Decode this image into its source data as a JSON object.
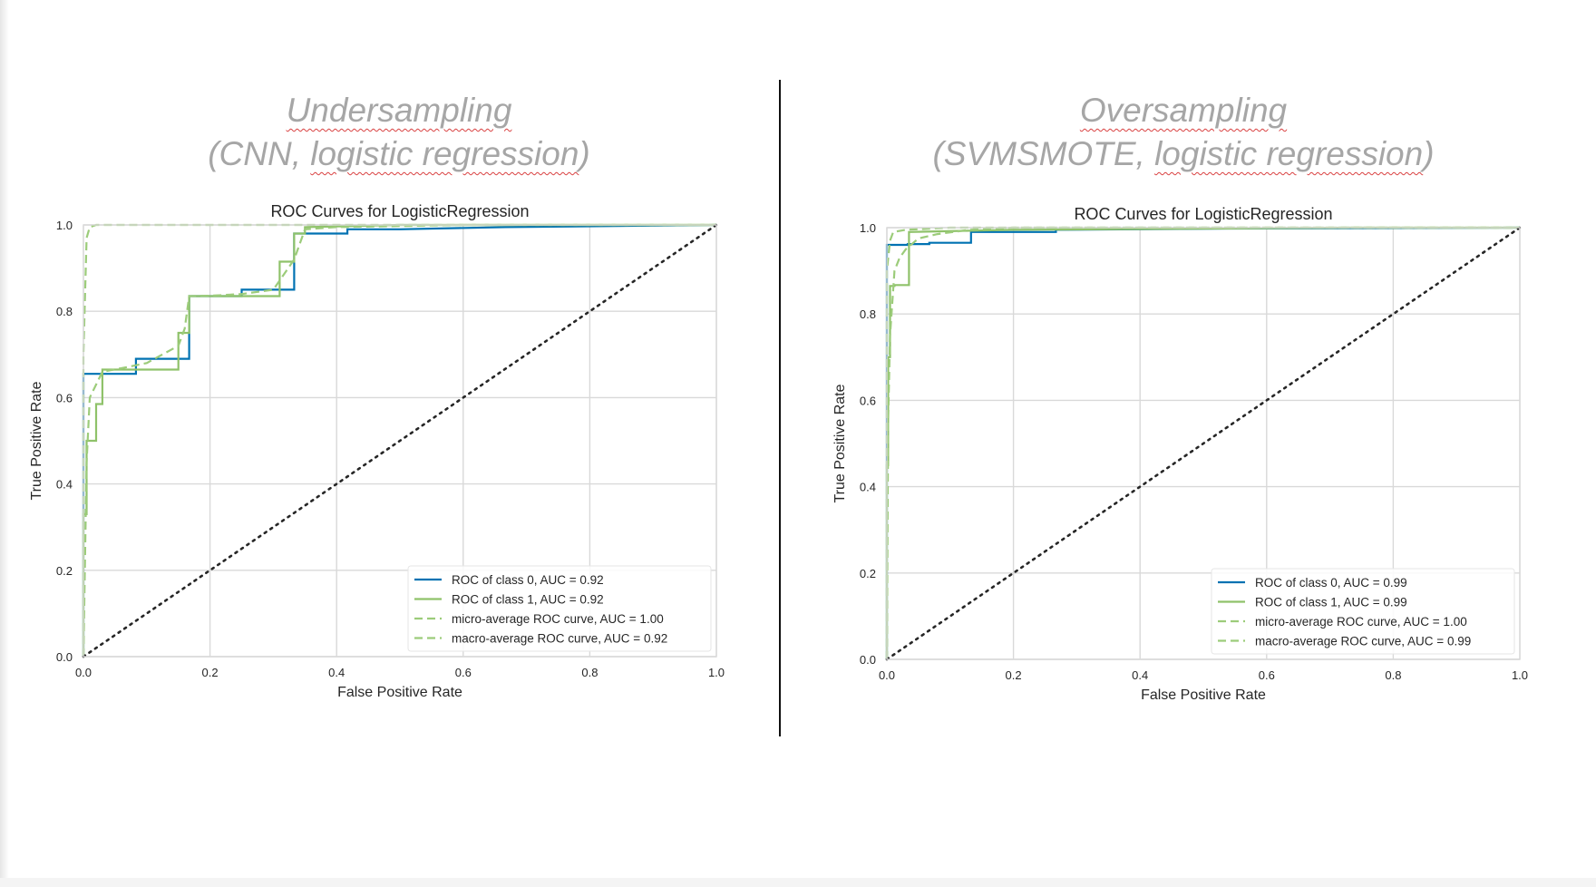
{
  "panels": [
    {
      "heading_main": "Undersampling",
      "heading_open": "(CNN, ",
      "heading_emph": "logistic regression",
      "heading_close": ")"
    },
    {
      "heading_main": "Oversampling",
      "heading_open": "(SVMSMOTE, ",
      "heading_emph": "logistic regression",
      "heading_close": ")"
    }
  ],
  "colors": {
    "class0": "#0072b2",
    "class1": "#8fc26a",
    "average": "#9ccc7a",
    "chance": "#262626",
    "grid": "#d9d9d9",
    "heading": "#a6a6a6"
  },
  "chart_data": [
    {
      "type": "line",
      "title": "ROC Curves for LogisticRegression",
      "xlabel": "False Positive Rate",
      "ylabel": "True Positive Rate",
      "xlim": [
        0,
        1
      ],
      "ylim": [
        0,
        1
      ],
      "xticks": [
        "0.0",
        "0.2",
        "0.4",
        "0.6",
        "0.8",
        "1.0"
      ],
      "yticks": [
        "0.0",
        "0.2",
        "0.4",
        "0.6",
        "0.8",
        "1.0"
      ],
      "grid": true,
      "legend_position": "lower-right",
      "series": [
        {
          "name": "ROC of class 0, AUC = 0.92",
          "style": "solid",
          "colorKey": "class0",
          "x": [
            0,
            0,
            0.083,
            0.083,
            0.167,
            0.167,
            0.25,
            0.25,
            0.333,
            0.333,
            0.417,
            0.417,
            0.5,
            0.667,
            1.0
          ],
          "y": [
            0,
            0.655,
            0.655,
            0.69,
            0.69,
            0.835,
            0.835,
            0.85,
            0.85,
            0.98,
            0.98,
            0.99,
            0.99,
            0.995,
            1.0
          ]
        },
        {
          "name": "ROC of class 1, AUC = 0.92",
          "style": "solid",
          "colorKey": "class1",
          "x": [
            0,
            0,
            0.005,
            0.005,
            0.02,
            0.02,
            0.03,
            0.03,
            0.15,
            0.15,
            0.167,
            0.167,
            0.31,
            0.31,
            0.333,
            0.333,
            0.35,
            0.35,
            0.5,
            1.0
          ],
          "y": [
            0,
            0.33,
            0.33,
            0.5,
            0.5,
            0.585,
            0.585,
            0.665,
            0.665,
            0.75,
            0.75,
            0.835,
            0.835,
            0.915,
            0.915,
            0.98,
            0.98,
            0.995,
            1.0,
            1.0
          ]
        },
        {
          "name": "micro-average ROC curve, AUC = 1.00",
          "style": "dashed",
          "colorKey": "average",
          "x": [
            0,
            0,
            0.005,
            0.01,
            0.02,
            1.0
          ],
          "y": [
            0,
            0.7,
            0.97,
            0.995,
            1.0,
            1.0
          ]
        },
        {
          "name": "macro-average ROC curve, AUC = 0.92",
          "style": "dashed",
          "colorKey": "average",
          "x": [
            0,
            0.005,
            0.01,
            0.03,
            0.06,
            0.1,
            0.15,
            0.16,
            0.167,
            0.2,
            0.25,
            0.3,
            0.333,
            0.35,
            0.4,
            0.6,
            1.0
          ],
          "y": [
            0,
            0.45,
            0.6,
            0.66,
            0.668,
            0.68,
            0.72,
            0.76,
            0.835,
            0.836,
            0.84,
            0.85,
            0.92,
            0.99,
            0.995,
            1.0,
            1.0
          ]
        },
        {
          "name": "",
          "style": "dotted",
          "colorKey": "chance",
          "x": [
            0,
            1
          ],
          "y": [
            0,
            1
          ]
        }
      ]
    },
    {
      "type": "line",
      "title": "ROC Curves for LogisticRegression",
      "xlabel": "False Positive Rate",
      "ylabel": "True Positive Rate",
      "xlim": [
        0,
        1
      ],
      "ylim": [
        0,
        1
      ],
      "xticks": [
        "0.0",
        "0.2",
        "0.4",
        "0.6",
        "0.8",
        "1.0"
      ],
      "yticks": [
        "0.0",
        "0.2",
        "0.4",
        "0.6",
        "0.8",
        "1.0"
      ],
      "grid": true,
      "legend_position": "lower-right",
      "series": [
        {
          "name": "ROC of class 0, AUC = 0.99",
          "style": "solid",
          "colorKey": "class0",
          "x": [
            0,
            0,
            0.033,
            0.033,
            0.067,
            0.067,
            0.133,
            0.133,
            0.267,
            0.267,
            0.533,
            1.0
          ],
          "y": [
            0,
            0.96,
            0.96,
            0.962,
            0.962,
            0.965,
            0.965,
            0.99,
            0.99,
            0.995,
            0.998,
            1.0
          ]
        },
        {
          "name": "ROC of class 1, AUC = 0.99",
          "style": "solid",
          "colorKey": "class1",
          "x": [
            0,
            0,
            0.002,
            0.002,
            0.005,
            0.005,
            0.012,
            0.012,
            0.035,
            0.035,
            0.2,
            0.733,
            1.0
          ],
          "y": [
            0,
            0.45,
            0.45,
            0.7,
            0.7,
            0.865,
            0.865,
            0.867,
            0.867,
            0.99,
            0.995,
            1.0,
            1.0
          ]
        },
        {
          "name": "micro-average ROC curve, AUC = 1.00",
          "style": "dashed",
          "colorKey": "average",
          "x": [
            0,
            0,
            0.005,
            0.01,
            0.03,
            0.1,
            1.0
          ],
          "y": [
            0,
            0.9,
            0.97,
            0.99,
            0.995,
            1.0,
            1.0
          ]
        },
        {
          "name": "macro-average ROC curve, AUC = 0.99",
          "style": "dashed",
          "colorKey": "average",
          "x": [
            0,
            0.002,
            0.005,
            0.012,
            0.02,
            0.03,
            0.05,
            0.08,
            0.13,
            0.2,
            1.0
          ],
          "y": [
            0,
            0.55,
            0.75,
            0.9,
            0.93,
            0.95,
            0.975,
            0.985,
            0.995,
            1.0,
            1.0
          ]
        },
        {
          "name": "",
          "style": "dotted",
          "colorKey": "chance",
          "x": [
            0,
            1
          ],
          "y": [
            0,
            1
          ]
        }
      ]
    }
  ]
}
